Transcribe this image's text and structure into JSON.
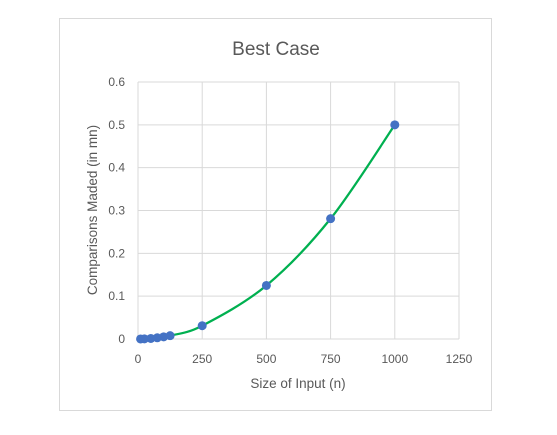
{
  "chart_data": {
    "type": "scatter",
    "title": "Best Case",
    "xlabel": "Size of Input (n)",
    "ylabel": "Comparisons Maded (in mn)",
    "xlim": [
      0,
      1250
    ],
    "ylim": [
      0,
      0.6
    ],
    "x_ticks": [
      "0",
      "250",
      "500",
      "750",
      "1000",
      "1250"
    ],
    "y_ticks": [
      "0",
      "0.1",
      "0.2",
      "0.3",
      "0.4",
      "0.5",
      "0.6"
    ],
    "grid": true,
    "legend": "none",
    "trendline": "smooth",
    "series": [
      {
        "x": [
          10,
          25,
          50,
          75,
          100,
          125,
          250,
          500,
          750,
          1000
        ],
        "y": [
          0.0001,
          0.0003,
          0.0013,
          0.0028,
          0.005,
          0.0078,
          0.031,
          0.125,
          0.281,
          0.5
        ],
        "marker_color": "#4472C4",
        "line_color": "#00B050"
      }
    ]
  }
}
